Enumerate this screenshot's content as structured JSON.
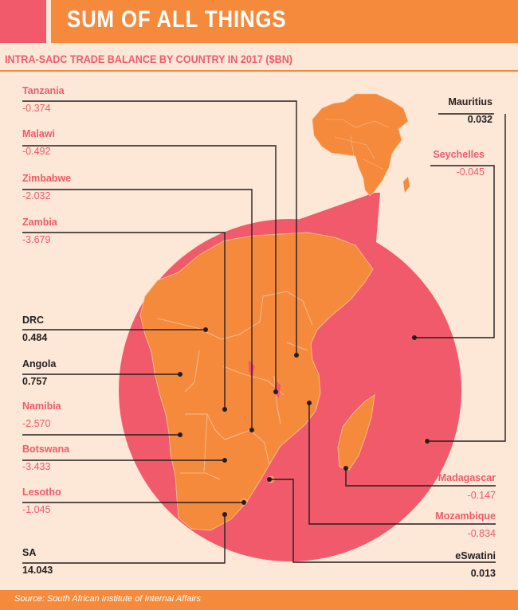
{
  "header": {
    "title": "SUM OF ALL THINGS",
    "subtitle": "INTRA-SADC TRADE BALANCE BY COUNTRY IN 2017 ($BN)"
  },
  "colors": {
    "pink": "#f15a6b",
    "orange": "#f58a3c",
    "background": "#fde7d6",
    "dark": "#231f20"
  },
  "countries": {
    "tanzania": {
      "name": "Tanzania",
      "value": "-0.374"
    },
    "malawi": {
      "name": "Malawi",
      "value": "-0.492"
    },
    "zimbabwe": {
      "name": "Zimbabwe",
      "value": "-2.032"
    },
    "zambia": {
      "name": "Zambia",
      "value": "-3.679"
    },
    "drc": {
      "name": "DRC",
      "value": "0.484"
    },
    "angola": {
      "name": "Angola",
      "value": "0.757"
    },
    "namibia": {
      "name": "Namibia",
      "value": "-2.570"
    },
    "botswana": {
      "name": "Botswana",
      "value": "-3.433"
    },
    "lesotho": {
      "name": "Lesotho",
      "value": "-1.045"
    },
    "sa": {
      "name": "SA",
      "value": "14.043"
    },
    "mauritius": {
      "name": "Mauritius",
      "value": "0.032"
    },
    "seychelles": {
      "name": "Seychelles",
      "value": "-0.045"
    },
    "madagascar": {
      "name": "Madagascar",
      "value": "-0.147"
    },
    "mozambique": {
      "name": "Mozambique",
      "value": "-0.834"
    },
    "eswatini": {
      "name": "eSwatini",
      "value": "0.013"
    }
  },
  "footer": {
    "source": "Source: South African Institute of Internal Affairs"
  }
}
